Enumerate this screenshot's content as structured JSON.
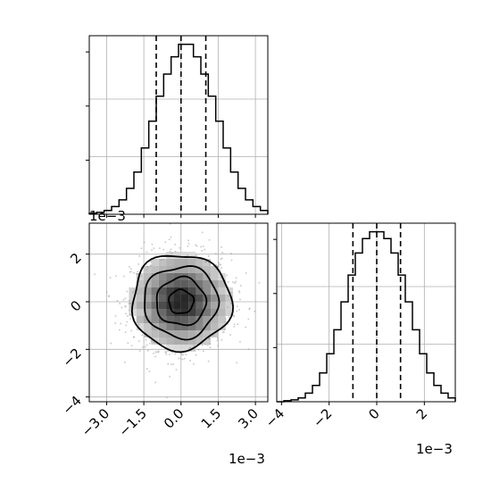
{
  "chart_data": [
    {
      "type": "histogram",
      "panel": "top-left",
      "xlim": [
        -0.0037,
        0.0035
      ],
      "bin_edges": [
        -0.0037,
        -0.0034,
        -0.0031,
        -0.0028,
        -0.0025,
        -0.0022,
        -0.0019,
        -0.0016,
        -0.0013,
        -0.001,
        -0.0007,
        -0.0004,
        -0.0001,
        0.0002,
        0.0005,
        0.0008,
        0.0011,
        0.0014,
        0.0017,
        0.002,
        0.0023,
        0.0026,
        0.0029,
        0.0032,
        0.0035
      ],
      "counts": [
        1,
        2,
        4,
        8,
        15,
        27,
        44,
        69,
        97,
        123,
        146,
        164,
        177,
        177,
        164,
        146,
        123,
        97,
        69,
        44,
        27,
        15,
        8,
        4
      ],
      "ylim": [
        0,
        186
      ],
      "quantile_lines": [
        -0.001,
        0.0,
        0.001
      ],
      "grid": true,
      "tick_labels": [],
      "offset_text": "1e−3"
    },
    {
      "type": "contour-density",
      "panel": "bottom-left",
      "xlim": [
        -0.0037,
        0.0035
      ],
      "ylim": [
        -0.0042,
        0.0033
      ],
      "center": [
        0.0,
        0.0
      ],
      "sigma": [
        0.001,
        0.001
      ],
      "contour_levels_sigma": [
        0.5,
        1.0,
        1.5,
        2.0
      ],
      "x_tick_values": [
        -0.003,
        -0.0015,
        0.0,
        0.0015,
        0.003
      ],
      "x_tick_labels": [
        "−3.0",
        "−1.5",
        "0.0",
        "1.5",
        "3.0"
      ],
      "y_tick_values": [
        -0.004,
        -0.002,
        0.0,
        0.002
      ],
      "y_tick_labels": [
        "−4",
        "−2",
        "0",
        "2"
      ],
      "x_offset_text": "1e−3",
      "y_offset_text": "1e−3",
      "grid": true
    },
    {
      "type": "histogram",
      "panel": "bottom-right",
      "xlim": [
        -0.0042,
        0.0033
      ],
      "bin_edges": [
        -0.0042,
        -0.0039,
        -0.0036,
        -0.0033,
        -0.003,
        -0.0027,
        -0.0024,
        -0.0021,
        -0.0018,
        -0.0015,
        -0.0012,
        -0.0009,
        -0.0006,
        -0.0003,
        0.0,
        0.0003,
        0.0006,
        0.0009,
        0.0012,
        0.0015,
        0.0018,
        0.0021,
        0.0024,
        0.0027,
        0.003,
        0.0033
      ],
      "counts": [
        0,
        1,
        2,
        4,
        9,
        17,
        30,
        50,
        75,
        104,
        132,
        155,
        170,
        177,
        177,
        170,
        155,
        132,
        104,
        75,
        50,
        30,
        17,
        9,
        4
      ],
      "ylim": [
        0,
        186
      ],
      "quantile_lines": [
        -0.001,
        0.0,
        0.001
      ],
      "x_tick_values": [
        -0.004,
        -0.002,
        0.0,
        0.002
      ],
      "x_tick_labels": [
        "−4",
        "−2",
        "0",
        "2"
      ],
      "offset_text": "1e−3",
      "grid": true
    }
  ]
}
